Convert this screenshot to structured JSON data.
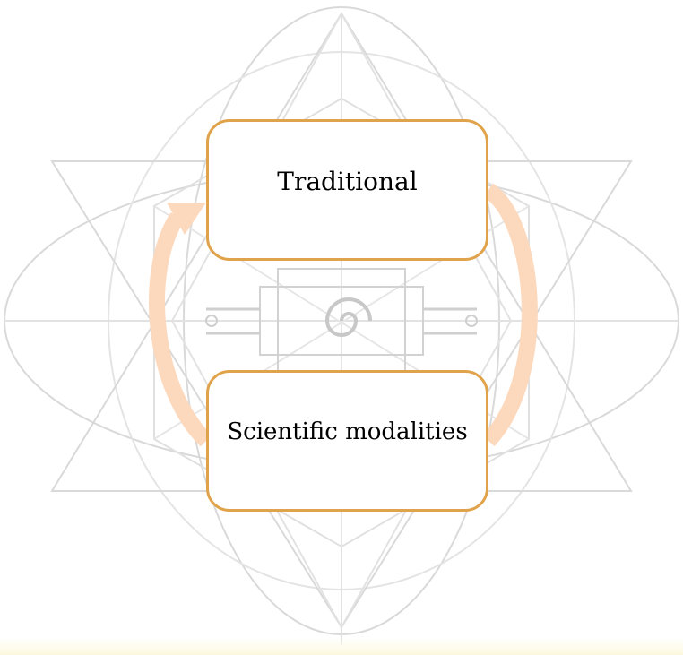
{
  "diagram": {
    "nodes": [
      {
        "id": "traditional",
        "label": "Traditional"
      },
      {
        "id": "scientific",
        "label": "Scientific modalities"
      }
    ],
    "cycle": {
      "direction": "clockwise",
      "from": "scientific",
      "to": "traditional"
    },
    "colors": {
      "node_border": "#e0a24a",
      "arrow": "#fcd9bd",
      "background_art": "#d9d9d9",
      "bottom_band": "#fbf7dc"
    }
  }
}
